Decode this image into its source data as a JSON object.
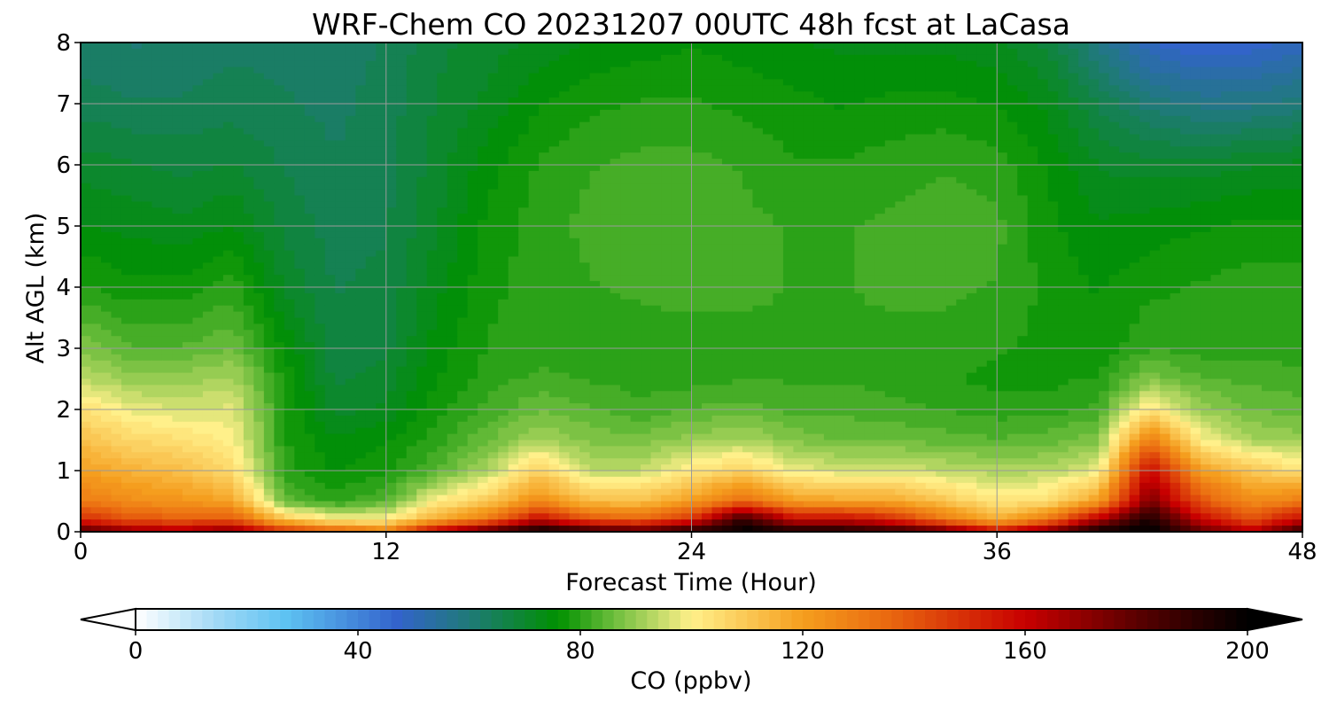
{
  "chart_data": {
    "type": "heatmap",
    "title": "WRF-Chem CO  20231207 00UTC 48h fcst at LaCasa",
    "xlabel": "Forecast Time (Hour)",
    "ylabel": "Alt AGL (km)",
    "xlim": [
      0,
      48
    ],
    "ylim": [
      0,
      8
    ],
    "xticks": [
      0,
      12,
      24,
      36,
      48
    ],
    "yticks": [
      0,
      1,
      2,
      3,
      4,
      5,
      6,
      7,
      8
    ],
    "grid": true,
    "x": [
      0,
      2,
      4,
      6,
      8,
      10,
      12,
      14,
      16,
      18,
      20,
      22,
      24,
      26,
      28,
      30,
      32,
      34,
      36,
      38,
      40,
      42,
      44,
      46,
      48
    ],
    "y": [
      0,
      0.2,
      0.5,
      1,
      1.5,
      2,
      2.5,
      3,
      4,
      5,
      6,
      7,
      8
    ],
    "z": [
      [
        185,
        170,
        168,
        175,
        150,
        140,
        130,
        165,
        185,
        200,
        190,
        185,
        195,
        200,
        195,
        195,
        190,
        180,
        160,
        175,
        200,
        200,
        180,
        165,
        190
      ],
      [
        150,
        140,
        138,
        140,
        110,
        100,
        100,
        118,
        130,
        160,
        140,
        135,
        150,
        190,
        160,
        160,
        150,
        130,
        115,
        130,
        165,
        195,
        160,
        140,
        160
      ],
      [
        130,
        125,
        122,
        118,
        85,
        80,
        84,
        100,
        110,
        125,
        112,
        112,
        120,
        135,
        120,
        118,
        118,
        110,
        102,
        105,
        120,
        175,
        140,
        125,
        130
      ],
      [
        120,
        115,
        112,
        105,
        80,
        76,
        78,
        84,
        92,
        108,
        94,
        94,
        102,
        108,
        98,
        96,
        96,
        94,
        92,
        93,
        98,
        160,
        120,
        110,
        103
      ],
      [
        112,
        106,
        104,
        100,
        79,
        74,
        76,
        80,
        86,
        92,
        88,
        87,
        90,
        92,
        88,
        86,
        86,
        85,
        84,
        85,
        88,
        130,
        100,
        92,
        90
      ],
      [
        104,
        98,
        96,
        97,
        79,
        70,
        72,
        78,
        82,
        86,
        84,
        82,
        84,
        85,
        83,
        83,
        82,
        81,
        80,
        80,
        82,
        103,
        90,
        86,
        85
      ],
      [
        94,
        90,
        90,
        92,
        78,
        68,
        70,
        76,
        80,
        82,
        81,
        80,
        80,
        81,
        81,
        81,
        80,
        79,
        78,
        78,
        79,
        88,
        84,
        83,
        82
      ],
      [
        88,
        84,
        84,
        86,
        76,
        67,
        68,
        75,
        79,
        80,
        80,
        79,
        79,
        80,
        81,
        81,
        80,
        80,
        79,
        78,
        77,
        81,
        80,
        80,
        80
      ],
      [
        79,
        77,
        77,
        80,
        71,
        66,
        67,
        73,
        78,
        80,
        81,
        82,
        83,
        82,
        81,
        81,
        82,
        82,
        81,
        78,
        76,
        78,
        79,
        80,
        80
      ],
      [
        74,
        73,
        72,
        74,
        68,
        65,
        66,
        71,
        77,
        80,
        82,
        83,
        83,
        82,
        81,
        81,
        82,
        83,
        82,
        77,
        74,
        75,
        76,
        77,
        77
      ],
      [
        70,
        69,
        68,
        69,
        66,
        64,
        65,
        70,
        75,
        79,
        81,
        82,
        82,
        81,
        79,
        79,
        80,
        81,
        80,
        76,
        71,
        70,
        70,
        71,
        72
      ],
      [
        65,
        64,
        64,
        65,
        64,
        63,
        65,
        69,
        72,
        76,
        78,
        79,
        79,
        78,
        77,
        76,
        77,
        77,
        76,
        73,
        66,
        60,
        58,
        58,
        60
      ],
      [
        62,
        61,
        62,
        63,
        63,
        62,
        64,
        68,
        70,
        72,
        74,
        75,
        76,
        75,
        74,
        73,
        73,
        73,
        72,
        68,
        58,
        49,
        46,
        47,
        50
      ]
    ],
    "colorbar": {
      "label": "CO  (ppbv)",
      "min": 0,
      "max": 200,
      "ticks": [
        0,
        40,
        80,
        120,
        160,
        200
      ],
      "extend": "both",
      "stops": [
        {
          "v": 0,
          "c": "#ffffff"
        },
        {
          "v": 15,
          "c": "#9fd8f5"
        },
        {
          "v": 27,
          "c": "#5ec2f2"
        },
        {
          "v": 47,
          "c": "#3363cc"
        },
        {
          "v": 60,
          "c": "#1f7a78"
        },
        {
          "v": 76,
          "c": "#009000"
        },
        {
          "v": 86,
          "c": "#6cbd3c"
        },
        {
          "v": 100,
          "c": "#fff08a"
        },
        {
          "v": 120,
          "c": "#f59e1e"
        },
        {
          "v": 135,
          "c": "#ea6a10"
        },
        {
          "v": 160,
          "c": "#c80000"
        },
        {
          "v": 180,
          "c": "#5a0000"
        },
        {
          "v": 200,
          "c": "#000000"
        }
      ]
    }
  }
}
